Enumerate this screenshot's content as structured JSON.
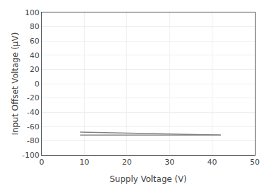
{
  "chart_data": {
    "type": "line",
    "xlabel": "Supply Voltage (V)",
    "ylabel": "Input Offset Voltage (μV)",
    "x": [
      9,
      42
    ],
    "series": [
      {
        "color": "#808080",
        "values": [
          -68,
          -72
        ]
      },
      {
        "color": "#808080",
        "values": [
          -72,
          -72
        ]
      }
    ],
    "xlim": [
      0,
      50
    ],
    "ylim": [
      -100,
      100
    ],
    "xticks": [
      0,
      10,
      20,
      30,
      40,
      50
    ],
    "yticks": [
      -100,
      -80,
      -60,
      -40,
      -20,
      0,
      20,
      40,
      60,
      80,
      100
    ],
    "grid": true
  }
}
